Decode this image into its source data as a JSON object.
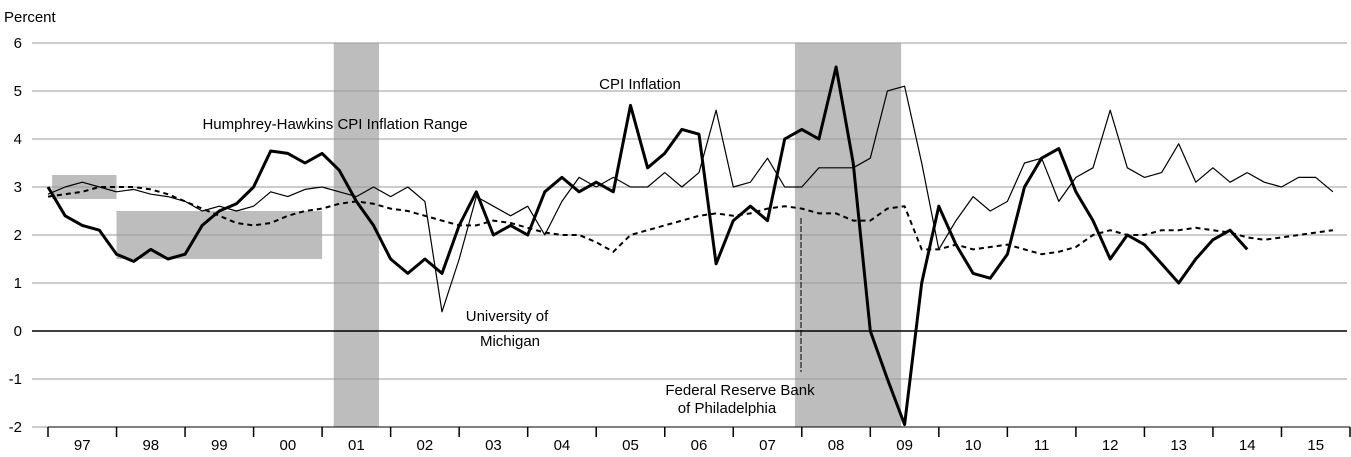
{
  "chart_data": {
    "type": "line",
    "y_axis_label": "Percent",
    "annotations": [
      "CPI Inflation",
      "Humphrey-Hawkins CPI Inflation Range",
      "University of",
      "Michigan",
      "Federal Reserve Bank",
      "of Philadelphia"
    ],
    "xlim": [
      1997,
      2016
    ],
    "ylim": [
      -2,
      6
    ],
    "yticks": [
      6,
      5,
      4,
      3,
      2,
      1,
      0,
      -1,
      -2
    ],
    "xticks": [
      {
        "value": 1997.5,
        "label": "97"
      },
      {
        "value": 1998.5,
        "label": "98"
      },
      {
        "value": 1999.5,
        "label": "99"
      },
      {
        "value": 2000.5,
        "label": "00"
      },
      {
        "value": 2001.5,
        "label": "01"
      },
      {
        "value": 2002.5,
        "label": "02"
      },
      {
        "value": 2003.5,
        "label": "03"
      },
      {
        "value": 2004.5,
        "label": "04"
      },
      {
        "value": 2005.5,
        "label": "05"
      },
      {
        "value": 2006.5,
        "label": "06"
      },
      {
        "value": 2007.5,
        "label": "07"
      },
      {
        "value": 2008.5,
        "label": "08"
      },
      {
        "value": 2009.5,
        "label": "09"
      },
      {
        "value": 2010.5,
        "label": "10"
      },
      {
        "value": 2011.5,
        "label": "11"
      },
      {
        "value": 2012.5,
        "label": "12"
      },
      {
        "value": 2013.5,
        "label": "13"
      },
      {
        "value": 2014.5,
        "label": "14"
      },
      {
        "value": 2015.5,
        "label": "15"
      }
    ],
    "xminor_ticks": [
      1997,
      1998,
      1999,
      2000,
      2001,
      2002,
      2003,
      2004,
      2005,
      2006,
      2007,
      2008,
      2009,
      2010,
      2011,
      2012,
      2013,
      2014,
      2015,
      2016
    ],
    "grid": true,
    "shade_color": "#bdbdbd",
    "shaded_periods": [
      [
        2001.17,
        2001.83
      ],
      [
        2007.9,
        2009.45
      ]
    ],
    "target_ranges": [
      {
        "x": [
          1997.06,
          1998.0
        ],
        "y": [
          2.75,
          3.25
        ]
      },
      {
        "x": [
          1998.0,
          2001.0
        ],
        "y": [
          1.5,
          2.5
        ]
      }
    ],
    "x": [
      1997,
      1997.25,
      1997.5,
      1997.75,
      1998,
      1998.25,
      1998.5,
      1998.75,
      1999,
      1999.25,
      1999.5,
      1999.75,
      2000,
      2000.25,
      2000.5,
      2000.75,
      2001,
      2001.25,
      2001.5,
      2001.75,
      2002,
      2002.25,
      2002.5,
      2002.75,
      2003,
      2003.25,
      2003.5,
      2003.75,
      2004,
      2004.25,
      2004.5,
      2004.75,
      2005,
      2005.25,
      2005.5,
      2005.75,
      2006,
      2006.25,
      2006.5,
      2006.75,
      2007,
      2007.25,
      2007.5,
      2007.75,
      2008,
      2008.25,
      2008.5,
      2008.75,
      2009,
      2009.25,
      2009.5,
      2009.75,
      2010,
      2010.25,
      2010.5,
      2010.75,
      2011,
      2011.25,
      2011.5,
      2011.75,
      2012,
      2012.25,
      2012.5,
      2012.75,
      2013,
      2013.25,
      2013.5,
      2013.75,
      2014,
      2014.25,
      2014.5,
      2014.75,
      2015,
      2015.25,
      2015.5,
      2015.75
    ],
    "series": [
      {
        "color": "#000000",
        "style": "thick",
        "values": [
          3.0,
          2.4,
          2.2,
          2.1,
          1.6,
          1.45,
          1.7,
          1.5,
          1.6,
          2.2,
          2.5,
          2.65,
          3.0,
          3.75,
          3.7,
          3.5,
          3.7,
          3.35,
          2.7,
          2.2,
          1.5,
          1.2,
          1.5,
          1.2,
          2.2,
          2.9,
          2.0,
          2.2,
          2.0,
          2.9,
          3.2,
          2.9,
          3.1,
          2.9,
          4.7,
          3.4,
          3.7,
          4.2,
          4.1,
          1.4,
          2.3,
          2.6,
          2.3,
          4.0,
          4.2,
          4.0,
          5.5,
          3.5,
          0.0,
          -1.0,
          -1.95,
          1.0,
          2.6,
          1.8,
          1.2,
          1.1,
          1.6,
          3.0,
          3.6,
          3.8,
          2.9,
          2.3,
          1.5,
          2.0,
          1.8,
          1.4,
          1.0,
          1.5,
          1.9,
          2.1,
          1.7,
          null,
          null,
          null,
          null,
          null
        ]
      },
      {
        "color": "#000000",
        "style": "thin",
        "values": [
          2.85,
          3.0,
          3.1,
          3.0,
          2.9,
          2.95,
          2.85,
          2.8,
          2.7,
          2.5,
          2.6,
          2.5,
          2.6,
          2.9,
          2.8,
          2.95,
          3.0,
          2.9,
          2.8,
          3.0,
          2.8,
          3.0,
          2.7,
          0.4,
          1.5,
          2.8,
          2.6,
          2.4,
          2.6,
          2.0,
          2.7,
          3.2,
          3.0,
          3.2,
          3.0,
          3.0,
          3.3,
          3.0,
          3.3,
          4.6,
          3.0,
          3.1,
          3.6,
          3.0,
          3.0,
          3.4,
          3.4,
          3.4,
          3.6,
          5.0,
          5.1,
          3.5,
          1.7,
          2.3,
          2.8,
          2.5,
          2.7,
          3.5,
          3.6,
          2.7,
          3.2,
          3.4,
          4.6,
          3.4,
          3.2,
          3.3,
          3.9,
          3.1,
          3.4,
          3.1,
          3.3,
          3.1,
          3.0,
          3.2,
          3.2,
          2.9
        ]
      },
      {
        "color": "#000000",
        "style": "dashed",
        "values": [
          2.8,
          2.85,
          2.9,
          3.0,
          3.0,
          3.0,
          2.95,
          2.85,
          2.7,
          2.55,
          2.4,
          2.25,
          2.2,
          2.25,
          2.4,
          2.5,
          2.55,
          2.65,
          2.7,
          2.65,
          2.55,
          2.5,
          2.4,
          2.3,
          2.2,
          2.2,
          2.3,
          2.25,
          2.15,
          2.05,
          2.0,
          2.0,
          1.85,
          1.65,
          2.0,
          2.1,
          2.2,
          2.3,
          2.4,
          2.45,
          2.4,
          2.45,
          2.55,
          2.6,
          2.55,
          2.45,
          2.45,
          2.3,
          2.3,
          2.55,
          2.6,
          1.7,
          1.7,
          1.8,
          1.7,
          1.75,
          1.8,
          1.7,
          1.6,
          1.65,
          1.75,
          2.0,
          2.1,
          2.0,
          2.0,
          2.1,
          2.1,
          2.15,
          2.1,
          2.05,
          1.95,
          1.9,
          1.95,
          2.0,
          2.05,
          2.1
        ]
      }
    ]
  }
}
